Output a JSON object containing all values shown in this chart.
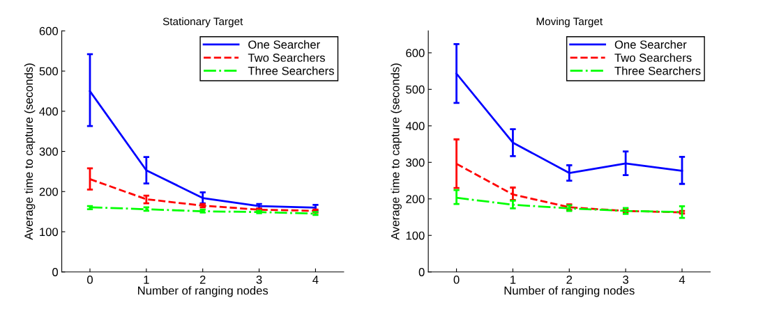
{
  "chart_data": [
    {
      "type": "line",
      "title": "Stationary Target",
      "xlabel": "Number of ranging nodes",
      "ylabel": "Average time to capture (seconds)",
      "x": [
        0,
        1,
        2,
        3,
        4
      ],
      "xlim": [
        -0.5,
        4.5
      ],
      "xticks": [
        0,
        1,
        2,
        3,
        4
      ],
      "ylim": [
        0,
        600
      ],
      "yticks": [
        0,
        100,
        200,
        300,
        400,
        500,
        600
      ],
      "legend": "top right",
      "grid": false,
      "series": [
        {
          "name": "One Searcher",
          "color": "#0000ff",
          "line_style": "solid",
          "values": [
            450,
            253,
            184,
            164,
            160
          ],
          "errors": [
            [
              363,
              542
            ],
            [
              220,
              286
            ],
            [
              171,
              198
            ],
            [
              158,
              169
            ],
            [
              153,
              167
            ]
          ]
        },
        {
          "name": "Two Searchers",
          "color": "#ff0000",
          "line_style": "dashed",
          "values": [
            231,
            181,
            165,
            155,
            152
          ],
          "errors": [
            [
              205,
              258
            ],
            [
              171,
              190
            ],
            [
              161,
              169
            ],
            [
              152,
              158
            ],
            [
              148,
              155
            ]
          ]
        },
        {
          "name": "Three Searchers",
          "color": "#00ff00",
          "line_style": "dashdot",
          "values": [
            161,
            156,
            151,
            149,
            145
          ],
          "errors": [
            [
              156,
              164
            ],
            [
              152,
              161
            ],
            [
              148,
              155
            ],
            [
              146,
              152
            ],
            [
              142,
              149
            ]
          ]
        }
      ]
    },
    {
      "type": "line",
      "title": "Moving Target",
      "xlabel": "Number of ranging nodes",
      "ylabel": "Average time to capture (seconds)",
      "x": [
        0,
        1,
        2,
        3,
        4
      ],
      "xlim": [
        -0.5,
        4.5
      ],
      "xticks": [
        0,
        1,
        2,
        3,
        4
      ],
      "ylim": [
        0,
        660
      ],
      "yticks": [
        0,
        100,
        200,
        300,
        400,
        500,
        600
      ],
      "legend": "top right",
      "grid": false,
      "series": [
        {
          "name": "One Searcher",
          "color": "#0000ff",
          "line_style": "solid",
          "values": [
            543,
            354,
            271,
            297,
            277
          ],
          "errors": [
            [
              463,
              624
            ],
            [
              317,
              391
            ],
            [
              250,
              292
            ],
            [
              265,
              330
            ],
            [
              241,
              315
            ]
          ]
        },
        {
          "name": "Two Searchers",
          "color": "#ff0000",
          "line_style": "dashed",
          "values": [
            296,
            212,
            177,
            167,
            163
          ],
          "errors": [
            [
              230,
              363
            ],
            [
              197,
              231
            ],
            [
              170,
              185
            ],
            [
              163,
              171
            ],
            [
              160,
              167
            ]
          ]
        },
        {
          "name": "Three Searchers",
          "color": "#00ff00",
          "line_style": "dashdot",
          "values": [
            203,
            184,
            174,
            167,
            164
          ],
          "errors": [
            [
              186,
              224
            ],
            [
              174,
              195
            ],
            [
              167,
              182
            ],
            [
              159,
              175
            ],
            [
              148,
              180
            ]
          ]
        }
      ]
    }
  ]
}
